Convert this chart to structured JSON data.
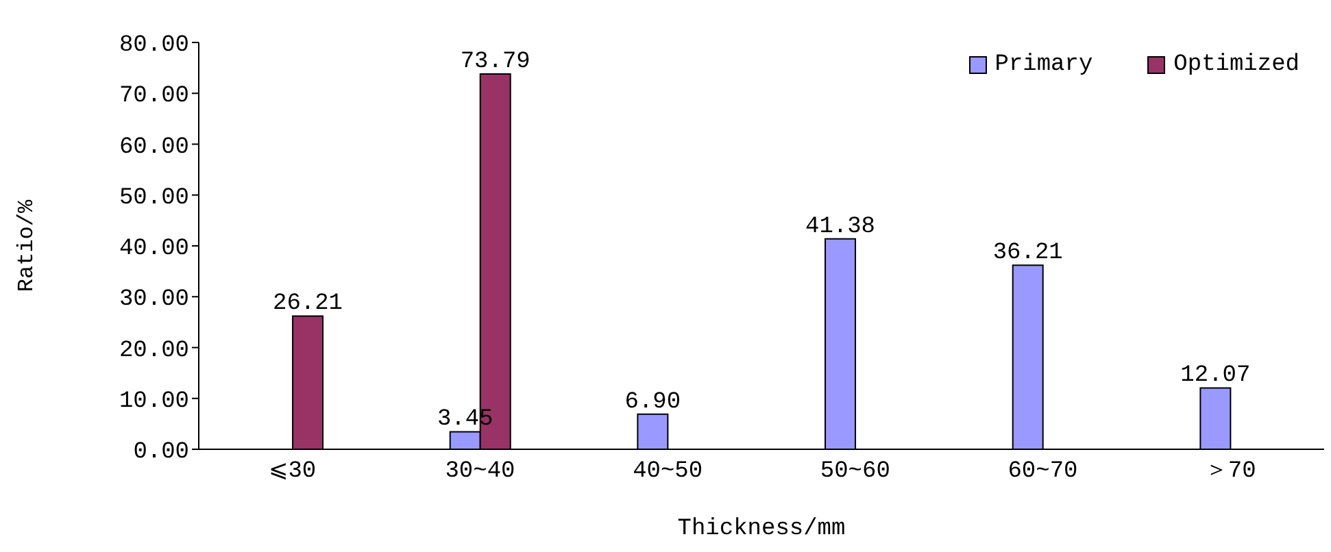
{
  "chart_data": {
    "type": "bar",
    "xlabel": "Thickness/mm",
    "ylabel": "Ratio/%",
    "categories": [
      "⩽30",
      "30~40",
      "40~50",
      "50~60",
      "60~70",
      "＞70"
    ],
    "series": [
      {
        "name": "Primary",
        "color": "#9999ff",
        "values": [
          null,
          3.45,
          6.9,
          41.38,
          36.21,
          12.07
        ],
        "value_labels": [
          null,
          "3.45",
          "6.90",
          "41.38",
          "36.21",
          "12.07"
        ]
      },
      {
        "name": "Optimized",
        "color": "#993366",
        "values": [
          26.21,
          73.79,
          null,
          null,
          null,
          null
        ],
        "value_labels": [
          "26.21",
          "73.79",
          null,
          null,
          null,
          null
        ]
      }
    ],
    "ylim": [
      0,
      80
    ],
    "yticks": [
      {
        "value": 0,
        "label": "0.00"
      },
      {
        "value": 10,
        "label": "10.00"
      },
      {
        "value": 20,
        "label": "20.00"
      },
      {
        "value": 30,
        "label": "30.00"
      },
      {
        "value": 40,
        "label": "40.00"
      },
      {
        "value": 50,
        "label": "50.00"
      },
      {
        "value": 60,
        "label": "60.00"
      },
      {
        "value": 70,
        "label": "70.00"
      },
      {
        "value": 80,
        "label": "80.00"
      }
    ],
    "grid": false,
    "legend": "top right"
  }
}
